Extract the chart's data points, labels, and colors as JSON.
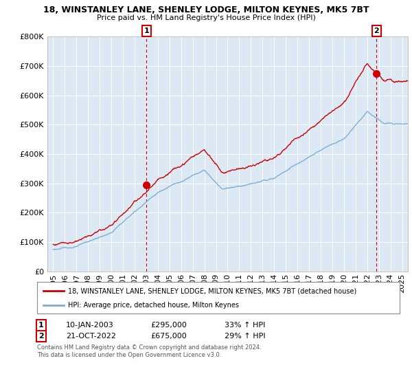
{
  "title": "18, WINSTANLEY LANE, SHENLEY LODGE, MILTON KEYNES, MK5 7BT",
  "subtitle": "Price paid vs. HM Land Registry's House Price Index (HPI)",
  "legend_line1": "18, WINSTANLEY LANE, SHENLEY LODGE, MILTON KEYNES, MK5 7BT (detached house)",
  "legend_line2": "HPI: Average price, detached house, Milton Keynes",
  "note1": "Contains HM Land Registry data © Crown copyright and database right 2024.",
  "note2": "This data is licensed under the Open Government Licence v3.0.",
  "transaction1_date": "10-JAN-2003",
  "transaction1_price": "£295,000",
  "transaction1_hpi": "33% ↑ HPI",
  "transaction2_date": "21-OCT-2022",
  "transaction2_price": "£675,000",
  "transaction2_hpi": "29% ↑ HPI",
  "red_color": "#cc0000",
  "blue_color": "#7bafd4",
  "bg_plot_color": "#dce9f5",
  "background_color": "#ffffff",
  "ylim": [
    0,
    800000
  ],
  "yticks": [
    0,
    100000,
    200000,
    300000,
    400000,
    500000,
    600000,
    700000,
    800000
  ],
  "xlim_start": 1994.5,
  "xlim_end": 2025.5,
  "xtick_years": [
    1995,
    1996,
    1997,
    1998,
    1999,
    2000,
    2001,
    2002,
    2003,
    2004,
    2005,
    2006,
    2007,
    2008,
    2009,
    2010,
    2011,
    2012,
    2013,
    2014,
    2015,
    2016,
    2017,
    2018,
    2019,
    2020,
    2021,
    2022,
    2023,
    2024,
    2025
  ],
  "marker1_x": 2003.03,
  "marker1_y": 295000,
  "marker2_x": 2022.8,
  "marker2_y": 675000,
  "vline1_x": 2003.03,
  "vline2_x": 2022.8,
  "n_points": 800
}
